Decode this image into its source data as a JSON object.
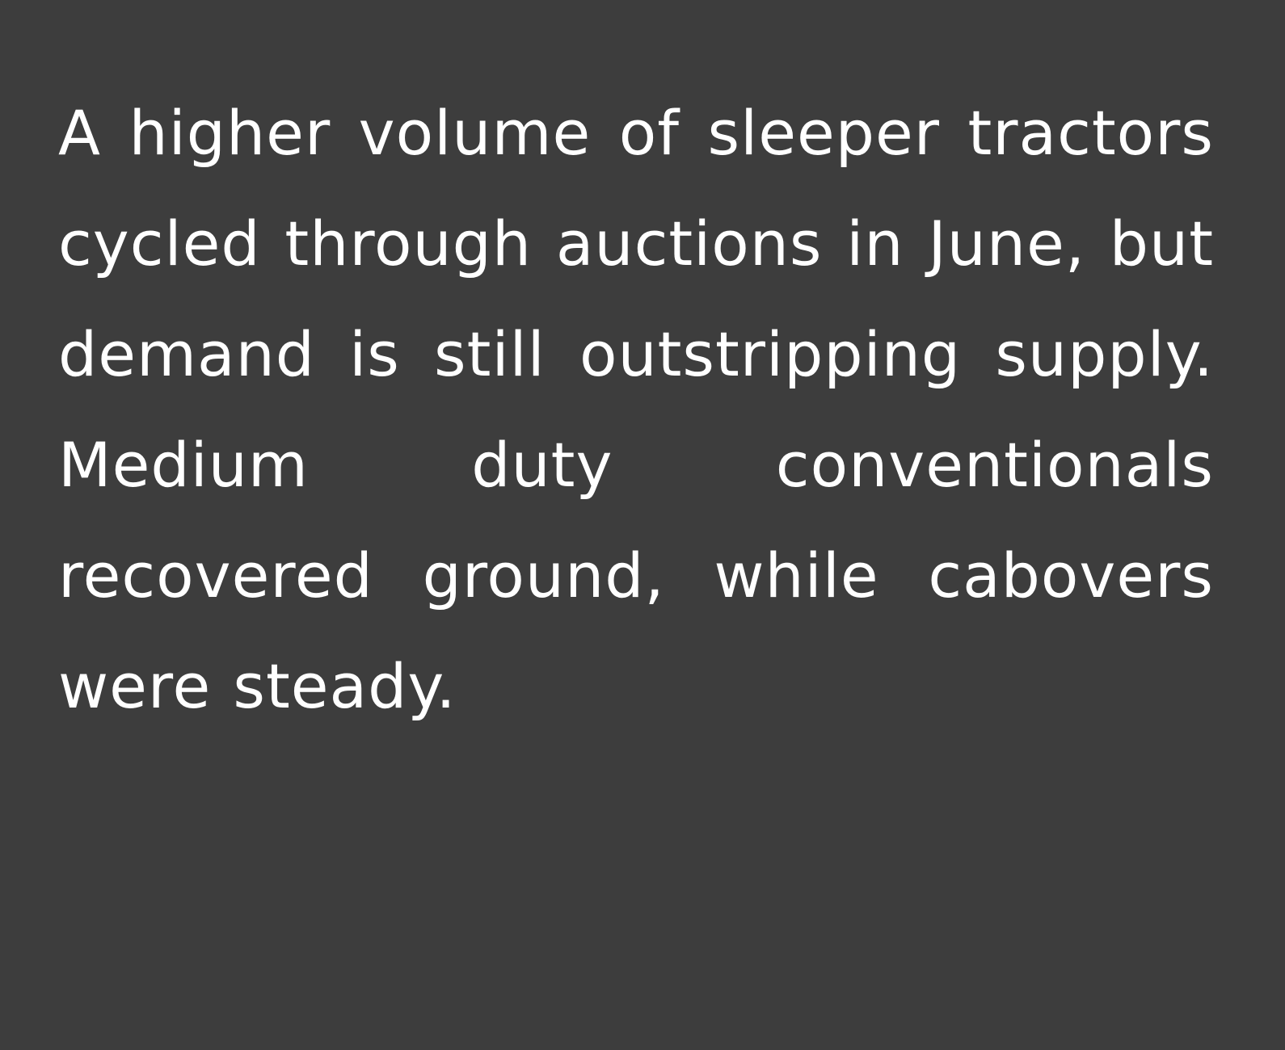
{
  "panel": {
    "background_color": "#3d3d3d",
    "text_color": "#ffffff",
    "paragraph": "A higher volume of sleeper tractors cycled through auctions in June, but demand is still outstripping supply. Medium duty conventionals recovered ground, while cabovers were steady."
  }
}
